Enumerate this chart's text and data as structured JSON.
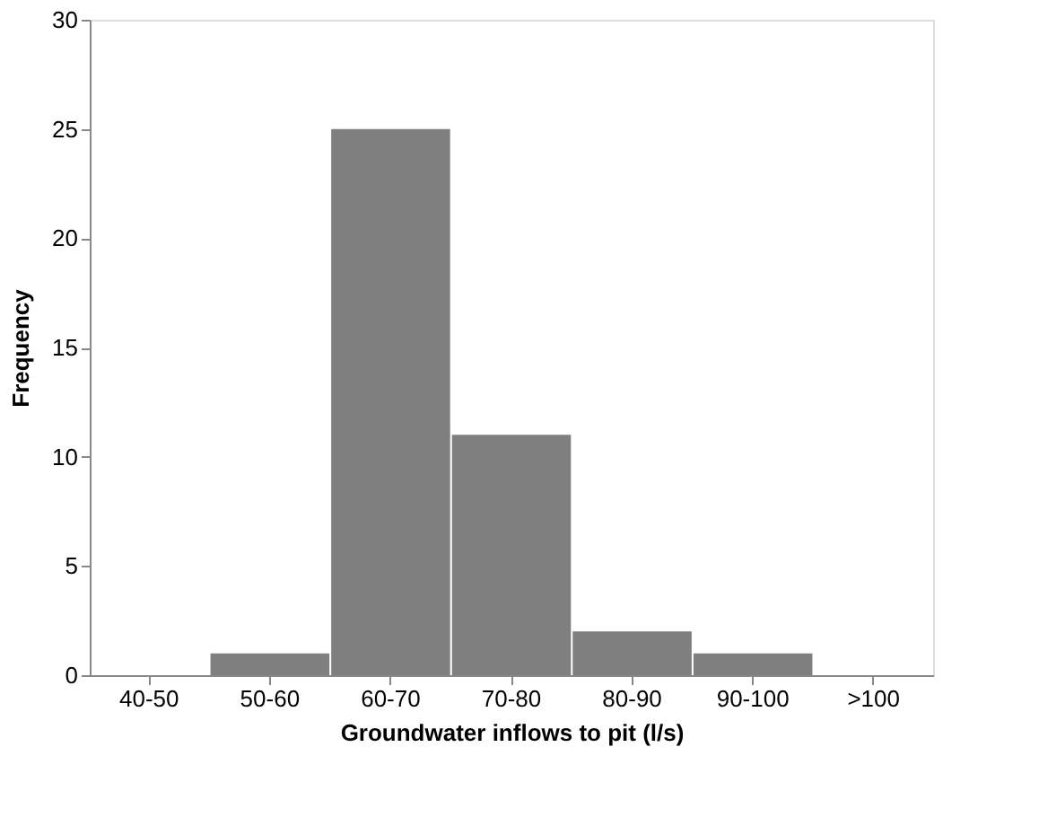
{
  "chart_data": {
    "type": "bar",
    "xlabel": "Groundwater inflows to pit (l/s)",
    "ylabel": "Frequency",
    "categories": [
      "40-50",
      "50-60",
      "60-70",
      "70-80",
      "80-90",
      "90-100",
      ">100"
    ],
    "values": [
      0,
      1,
      25,
      11,
      2,
      1,
      0
    ],
    "color": "#7f7f7f",
    "ylim": [
      0,
      30
    ],
    "yticks": [
      0,
      5,
      10,
      15,
      20,
      25,
      30
    ],
    "grid": false
  }
}
